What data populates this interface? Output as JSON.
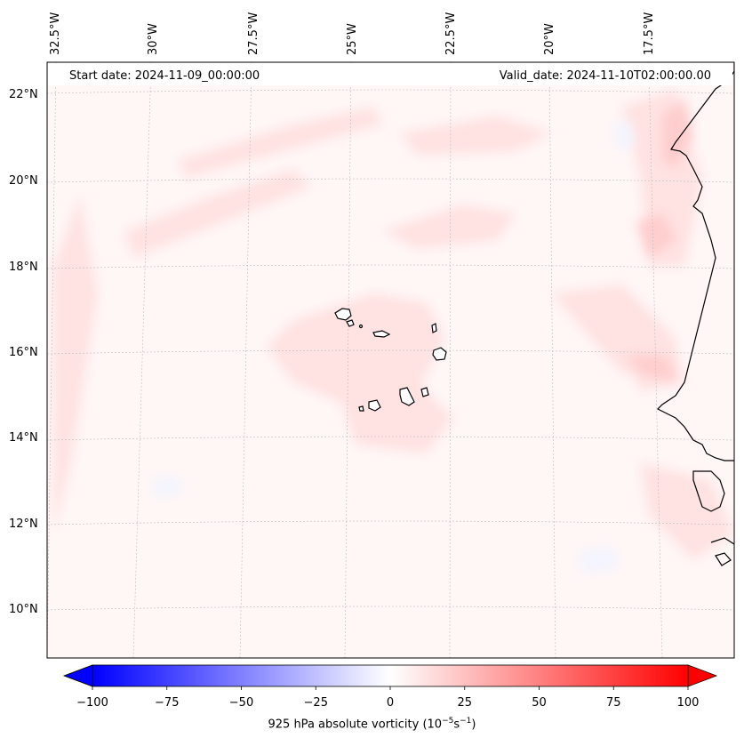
{
  "header": {
    "start_date": "Start date: 2024-11-09_00:00:00",
    "valid_date": "Valid_date: 2024-11-10T02:00:00.00"
  },
  "axes": {
    "lon_labels": [
      "32.5°W",
      "30°W",
      "27.5°W",
      "25°W",
      "22.5°W",
      "20°W",
      "17.5°W"
    ],
    "lat_labels": [
      "22°N",
      "20°N",
      "18°N",
      "16°N",
      "14°N",
      "12°N",
      "10°N"
    ]
  },
  "colorbar": {
    "ticks": [
      "−100",
      "−75",
      "−50",
      "−25",
      "0",
      "25",
      "50",
      "75",
      "100"
    ],
    "vmin": -100,
    "vmax": 100,
    "label_prefix": "925 hPa absolute vorticity (10",
    "exp_a": "−5",
    "mid": "s",
    "exp_b": "−1",
    "suffix": ")"
  },
  "colors": {
    "negative": "#0000ff",
    "positive": "#ff0000",
    "background": "#fff5f5",
    "coast": "#000000"
  }
}
